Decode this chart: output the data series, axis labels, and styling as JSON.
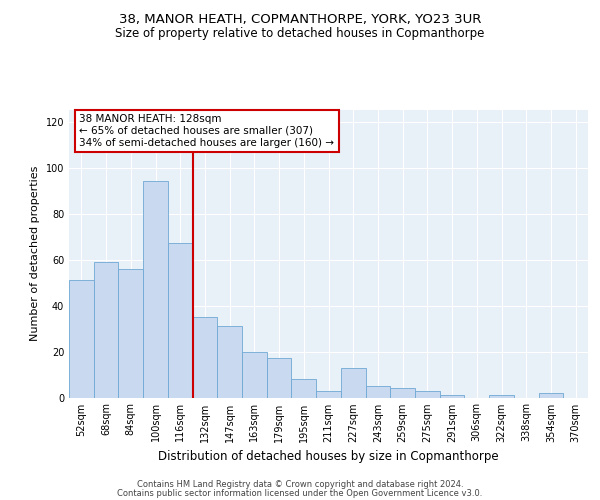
{
  "title1": "38, MANOR HEATH, COPMANTHORPE, YORK, YO23 3UR",
  "title2": "Size of property relative to detached houses in Copmanthorpe",
  "xlabel": "Distribution of detached houses by size in Copmanthorpe",
  "ylabel": "Number of detached properties",
  "categories": [
    "52sqm",
    "68sqm",
    "84sqm",
    "100sqm",
    "116sqm",
    "132sqm",
    "147sqm",
    "163sqm",
    "179sqm",
    "195sqm",
    "211sqm",
    "227sqm",
    "243sqm",
    "259sqm",
    "275sqm",
    "291sqm",
    "306sqm",
    "322sqm",
    "338sqm",
    "354sqm",
    "370sqm"
  ],
  "values": [
    51,
    59,
    56,
    94,
    67,
    35,
    31,
    20,
    17,
    8,
    3,
    13,
    5,
    4,
    3,
    1,
    0,
    1,
    0,
    2,
    0
  ],
  "bar_color": "#c8d9f0",
  "bar_edge_color": "#6fa8d4",
  "vline_color": "#cc0000",
  "annotation_text": "38 MANOR HEATH: 128sqm\n← 65% of detached houses are smaller (307)\n34% of semi-detached houses are larger (160) →",
  "annotation_box_color": "white",
  "annotation_box_edge": "#cc0000",
  "ylim": [
    0,
    125
  ],
  "yticks": [
    0,
    20,
    40,
    60,
    80,
    100,
    120
  ],
  "footer1": "Contains HM Land Registry data © Crown copyright and database right 2024.",
  "footer2": "Contains public sector information licensed under the Open Government Licence v3.0.",
  "bg_color": "#e8f0f8",
  "fig_bg_color": "#ffffff",
  "grid_color": "#ffffff",
  "title1_fontsize": 9.5,
  "title2_fontsize": 8.5,
  "ylabel_fontsize": 8,
  "xlabel_fontsize": 8.5,
  "tick_fontsize": 7,
  "ann_fontsize": 7.5,
  "footer_fontsize": 6
}
